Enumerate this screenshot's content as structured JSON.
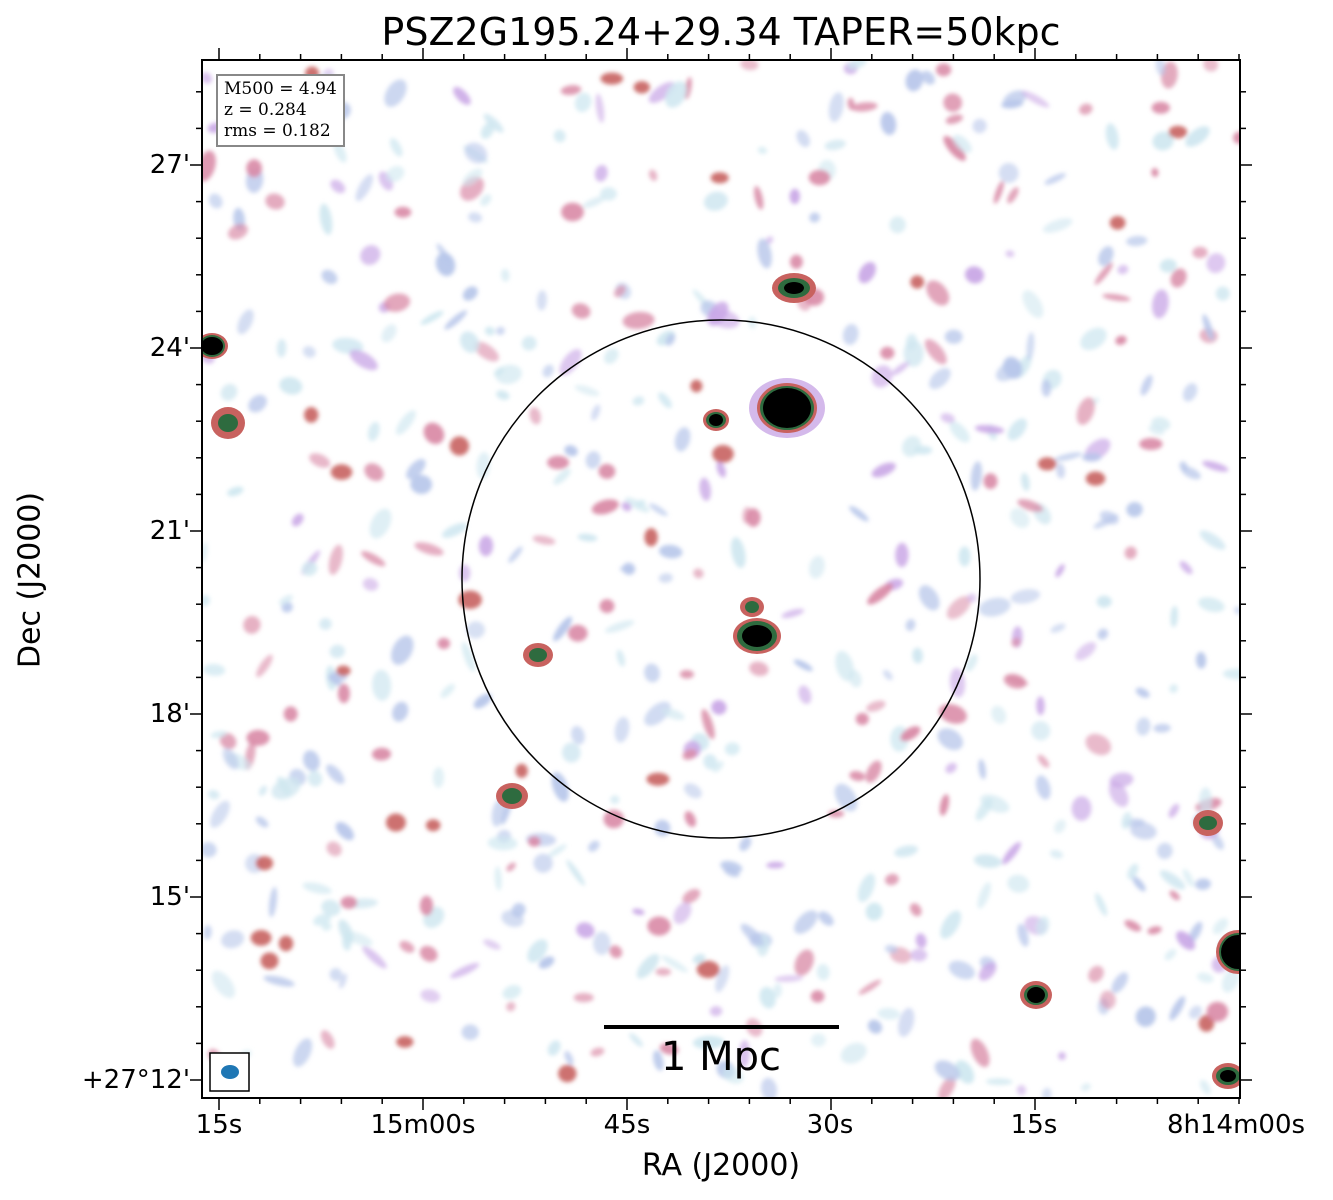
{
  "title": "PSZ2G195.24+29.34 TAPER=50kpc",
  "axes": {
    "xlabel": "RA (J2000)",
    "ylabel": "Dec (J2000)",
    "xticks": [
      "15s",
      "15m00s",
      "45s",
      "30s",
      "15s",
      "8h14m00s"
    ],
    "yticks": [
      "27'",
      "24'",
      "21'",
      "18'",
      "15'",
      "+27°12'"
    ]
  },
  "info": {
    "mass": "M500 = 4.94",
    "redshift": "z = 0.284",
    "rms": "rms = 0.182"
  },
  "scale_bar": {
    "label": "1 Mpc"
  },
  "colors": {
    "noise_light": "#cfe7f0",
    "noise_blue": "#b7c6ea",
    "noise_purple": "#c9a7e6",
    "mid_pink": "#d98aa6",
    "mid_red": "#c8625f",
    "high_green": "#2e6b3f",
    "peak": "#000000",
    "beam": "#1f77b4"
  }
}
